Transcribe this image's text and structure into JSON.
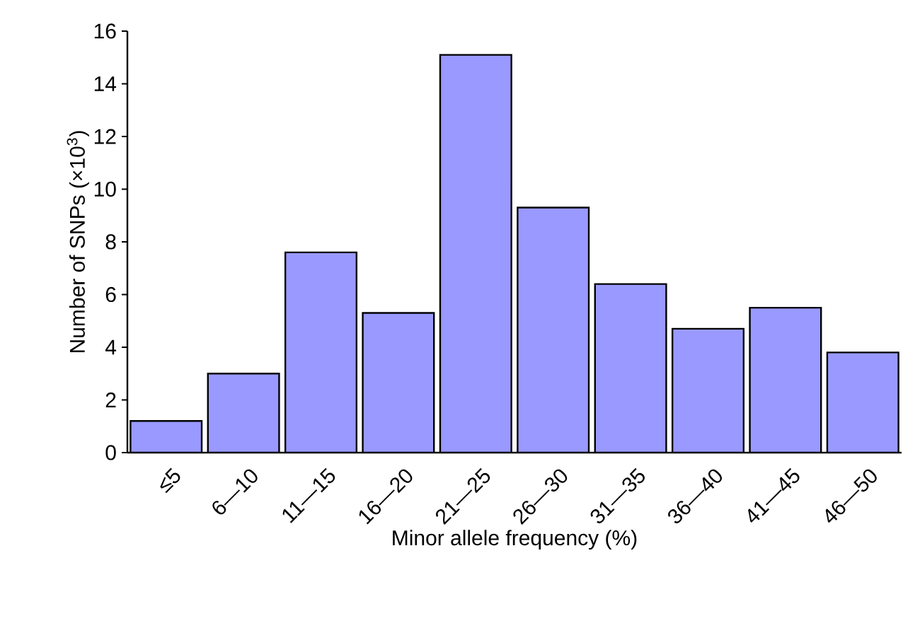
{
  "chart_data": {
    "type": "bar",
    "xlabel": "Minor allele frequency (%)",
    "ylabel": "Number of SNPs (×10$^{3}$)",
    "categories": [
      "≤5",
      "6—10",
      "11—15",
      "16—20",
      "21—25",
      "26—30",
      "31—35",
      "36—40",
      "41—45",
      "46—50"
    ],
    "values": [
      1.2,
      3.0,
      7.6,
      5.3,
      15.1,
      9.3,
      6.4,
      4.7,
      5.5,
      3.8
    ],
    "color": "#9999ff",
    "ylim": [
      0,
      16
    ],
    "yticks": [
      0,
      2,
      4,
      6,
      8,
      10,
      12,
      14,
      16
    ],
    "grid": false
  }
}
